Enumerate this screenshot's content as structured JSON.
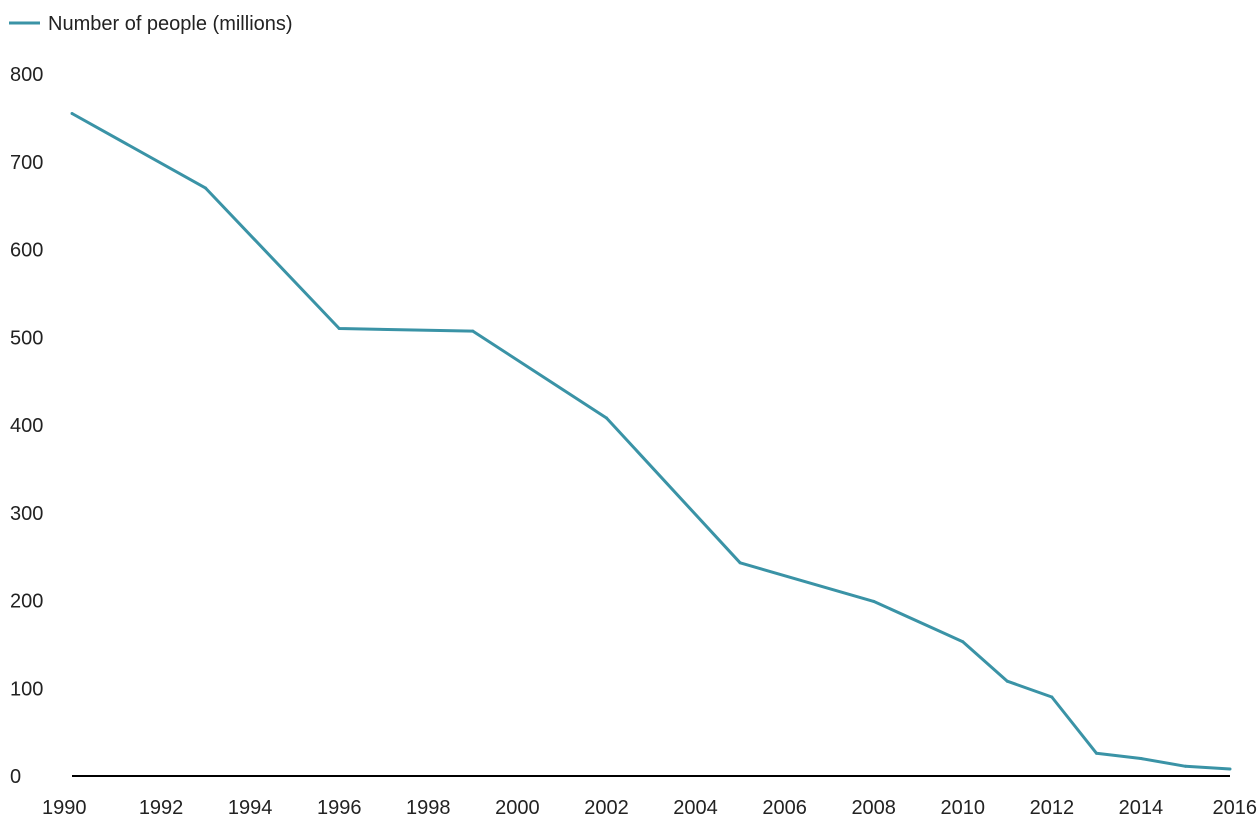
{
  "chart_data": {
    "type": "line",
    "title": "",
    "xlabel": "",
    "ylabel": "",
    "grid": false,
    "legend_position": "top-left",
    "xlim": [
      1990,
      2016
    ],
    "ylim": [
      0,
      800
    ],
    "x_ticks": [
      1990,
      1992,
      1994,
      1996,
      1998,
      2000,
      2002,
      2004,
      2006,
      2008,
      2010,
      2012,
      2014,
      2016
    ],
    "y_ticks": [
      0,
      100,
      200,
      300,
      400,
      500,
      600,
      700,
      800
    ],
    "colors": {
      "series": "#3a93a6",
      "axis": "#000000"
    },
    "series": [
      {
        "name": "Number of people (millions)",
        "x": [
          1990,
          1993,
          1996,
          1999,
          2002,
          2005,
          2008,
          2010,
          2011,
          2012,
          2013,
          2014,
          2015,
          2016
        ],
        "values": [
          755,
          670,
          510,
          507,
          408,
          243,
          199,
          153,
          108,
          90,
          26,
          20,
          11,
          8
        ]
      }
    ]
  }
}
